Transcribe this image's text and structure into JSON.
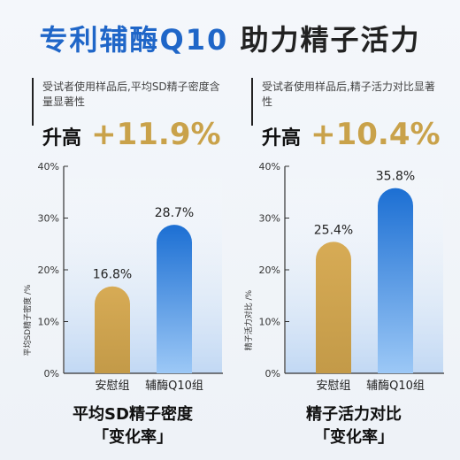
{
  "title": {
    "accent": "专利辅酶Q10",
    "rest": "助力精子活力"
  },
  "panels": [
    {
      "desc": "受试者使用样品后,平均SD精子密度含量显著性",
      "gain_label": "升高",
      "gain_value": "+11.9%"
    },
    {
      "desc": "受试者使用样品后,精子活力对比显著性",
      "gain_label": "升高",
      "gain_value": "+10.4%"
    }
  ],
  "footers": [
    {
      "line1": "平均SD精子密度",
      "line2": "「变化率」"
    },
    {
      "line1": "精子活力对比",
      "line2": "「变化率」"
    }
  ],
  "colors": {
    "accent": "#1f66c8",
    "gold": "#c9a24a",
    "placebo": "#d2a54f",
    "treatment": "#1a73d6"
  },
  "chart_data": [
    {
      "type": "bar",
      "categories": [
        "安慰组",
        "辅酶Q10组"
      ],
      "values": [
        16.8,
        28.7
      ],
      "value_labels": [
        "16.8%",
        "28.7%"
      ],
      "ylabel": "平均SD精子密度 /%",
      "yticks": [
        "0%",
        "10%",
        "20%",
        "30%",
        "40%"
      ],
      "ylim": [
        0,
        40
      ]
    },
    {
      "type": "bar",
      "categories": [
        "安慰组",
        "辅酶Q10组"
      ],
      "values": [
        25.4,
        35.8
      ],
      "value_labels": [
        "25.4%",
        "35.8%"
      ],
      "ylabel": "精子活力对比 /%",
      "yticks": [
        "0%",
        "10%",
        "20%",
        "30%",
        "40%"
      ],
      "ylim": [
        0,
        40
      ]
    }
  ]
}
